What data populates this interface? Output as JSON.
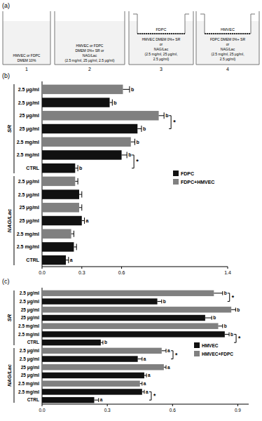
{
  "panel_a": {
    "panel": "(a)",
    "wells": [
      {
        "number": 1,
        "lines": [
          "HMVEC or FDPC",
          "DMEM 10%"
        ]
      },
      {
        "number": 2,
        "lines": [
          "HMVEC or FDPC",
          "DMEM 0%+ SR or",
          "NAG/Lac",
          "(2.5 mg/ml, 25 μg/ml, 2.5 μg/ml)"
        ]
      },
      {
        "number": 3,
        "insert": "FDPC",
        "lines": [
          "HMVEC DMEM 0%+ SR",
          "or",
          "NAG/Lac",
          "(2.5 mg/ml, 25 μg/ml,",
          "2.5 μg/ml)"
        ]
      },
      {
        "number": 4,
        "insert": "HMVEC",
        "lines": [
          "FDPC DMEM 0%+ SR",
          "or",
          "NAG/Lac",
          "(2.5 mg/ml, 25 μg/ml,",
          "2.5 μg/ml)"
        ]
      }
    ]
  },
  "chart_data": [
    {
      "type": "bar",
      "orientation": "horizontal",
      "panel": "(b)",
      "categories": [
        "2.5 μg/ml",
        "2.5 μg/ml",
        "25 μg/ml",
        "25 μg/ml",
        "2.5 mg/ml",
        "2.5 mg/ml",
        "CTRL",
        "2.5 μg/ml",
        "2.5 μg/ml",
        "25 μg/ml",
        "25 μg/ml",
        "2.5 mg/ml",
        "2.5 mg/ml",
        "CTRL"
      ],
      "groups": [
        {
          "label": "SR",
          "count": 7
        },
        {
          "label": "NAG/Lac",
          "count": 7
        }
      ],
      "series": [
        {
          "name": "FDPC",
          "color": "#111111",
          "values": [
            null,
            0.51,
            null,
            0.72,
            null,
            0.6,
            0.25,
            null,
            0.28,
            null,
            0.3,
            null,
            0.24,
            0.18
          ],
          "errors": [
            null,
            0.02,
            null,
            0.03,
            null,
            0.04,
            0.02,
            null,
            0.02,
            null,
            0.02,
            null,
            0.02,
            0.02
          ]
        },
        {
          "name": "FDPC+HMVEC",
          "color": "#808080",
          "values": [
            0.61,
            null,
            0.88,
            null,
            0.67,
            null,
            null,
            0.25,
            null,
            0.28,
            null,
            0.22,
            null,
            null
          ],
          "errors": [
            0.05,
            null,
            0.04,
            null,
            0.03,
            null,
            null,
            0.02,
            null,
            0.02,
            null,
            0.02,
            null,
            null
          ]
        }
      ],
      "letters": [
        "b",
        "b",
        "b",
        "b",
        "b",
        "b",
        "b",
        null,
        null,
        null,
        "a",
        null,
        null,
        "a"
      ],
      "comparisons": [
        {
          "from": 2,
          "to": 3,
          "label": "*"
        },
        {
          "from": 5,
          "to": 6,
          "label": "*"
        }
      ],
      "xlim": [
        0,
        1.4
      ],
      "xticks": [
        {
          "value": 0,
          "label": "0.0"
        },
        0.3,
        0.6,
        1.4
      ],
      "legend": "right"
    },
    {
      "type": "bar",
      "orientation": "horizontal",
      "panel": "(c)",
      "categories": [
        "2.5 μg/ml",
        "2.5 μg/ml",
        "25 μg/ml",
        "25 μg/ml",
        "2.5 mg/ml",
        "2.5 mg/ml",
        "CTRL",
        "2.5 μg/ml",
        "2.5 μg/ml",
        "25 μg/ml",
        "25 μg/ml",
        "2.5 mg/ml",
        "2.5 mg/ml",
        "CTRL"
      ],
      "groups": [
        {
          "label": "SR",
          "count": 7
        },
        {
          "label": "NAG/Lac",
          "count": 7
        }
      ],
      "series": [
        {
          "name": "HMVEC",
          "color": "#111111",
          "values": [
            null,
            0.53,
            null,
            0.75,
            null,
            0.84,
            0.27,
            null,
            0.44,
            null,
            0.47,
            null,
            0.46,
            0.24
          ],
          "errors": [
            null,
            0.02,
            null,
            0.03,
            null,
            0.02,
            0.01,
            null,
            0.02,
            null,
            0.01,
            null,
            0.01,
            0.02
          ]
        },
        {
          "name": "HMVEC+FDPC",
          "color": "#808080",
          "values": [
            0.79,
            null,
            0.87,
            null,
            0.81,
            null,
            null,
            0.55,
            null,
            0.56,
            null,
            0.45,
            null,
            null
          ],
          "errors": [
            0.04,
            null,
            0.02,
            null,
            0.02,
            null,
            null,
            0.02,
            null,
            0.01,
            null,
            0.01,
            null,
            null
          ]
        }
      ],
      "letters": [
        "b",
        "b",
        "b",
        "b",
        "b",
        "b",
        "b",
        "a",
        "a",
        "a",
        "a",
        "a",
        "a",
        "a"
      ],
      "comparisons": [
        {
          "from": 0,
          "to": 1,
          "label": "*"
        },
        {
          "from": 5,
          "to": 6,
          "label": "*"
        },
        {
          "from": 7,
          "to": 8,
          "label": "*"
        },
        {
          "from": 12,
          "to": 13,
          "label": "*"
        }
      ],
      "xlim": [
        0,
        0.95
      ],
      "xticks": [
        {
          "value": 0,
          "label": "0.0"
        },
        0.3,
        0.6,
        0.9
      ],
      "legend": "right"
    }
  ]
}
